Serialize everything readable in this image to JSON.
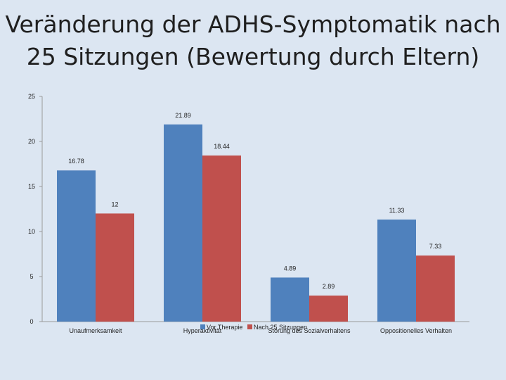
{
  "title_line1": "Veränderung der ADHS-Symptomatik nach",
  "title_line2": "25 Sitzungen (Bewertung durch Eltern)",
  "chart_data": {
    "type": "bar",
    "categories": [
      "Unaufmerksamkeit",
      "Hyperaktivität",
      "Störung des Sozialverhaltens",
      "Oppositionelles Verhalten"
    ],
    "series": [
      {
        "name": "Vor Therapie",
        "values": [
          16.78,
          21.89,
          4.89,
          11.33
        ],
        "labels": [
          "16.78",
          "21.89",
          "4.89",
          "11.33"
        ],
        "color": "#4f81bd"
      },
      {
        "name": "Nach 25 Sitzungen",
        "values": [
          12,
          18.44,
          2.89,
          7.33
        ],
        "labels": [
          "12",
          "18.44",
          "2.89",
          "7.33"
        ],
        "color": "#c0504d"
      }
    ],
    "yticks": [
      0,
      5,
      10,
      15,
      20,
      25
    ],
    "ylim": [
      0,
      25
    ],
    "legend_position": "bottom",
    "grid": false
  }
}
